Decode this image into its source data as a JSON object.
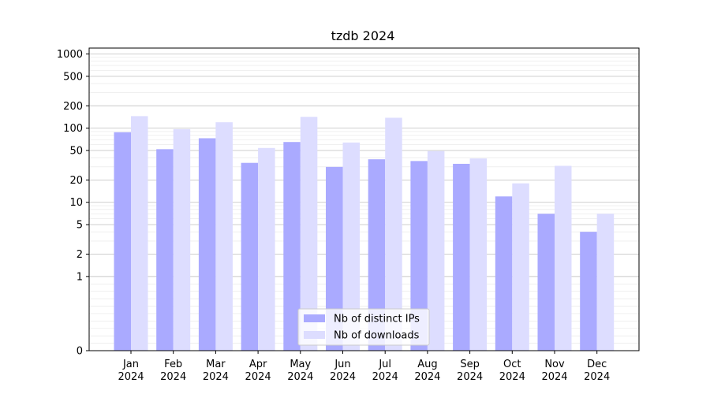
{
  "chart_data": {
    "type": "bar",
    "title": "tzdb 2024",
    "xlabel": "",
    "ylabel": "",
    "yscale": "symlog",
    "ylim": [
      0,
      1200
    ],
    "yticks": [
      0,
      1,
      2,
      5,
      10,
      20,
      50,
      100,
      200,
      500,
      1000
    ],
    "ytick_labels": [
      "0",
      "1",
      "2",
      "5",
      "10",
      "20",
      "50",
      "100",
      "200",
      "500",
      "1000"
    ],
    "categories": [
      [
        "Jan",
        "2024"
      ],
      [
        "Feb",
        "2024"
      ],
      [
        "Mar",
        "2024"
      ],
      [
        "Apr",
        "2024"
      ],
      [
        "May",
        "2024"
      ],
      [
        "Jun",
        "2024"
      ],
      [
        "Jul",
        "2024"
      ],
      [
        "Aug",
        "2024"
      ],
      [
        "Sep",
        "2024"
      ],
      [
        "Oct",
        "2024"
      ],
      [
        "Nov",
        "2024"
      ],
      [
        "Dec",
        "2024"
      ]
    ],
    "series": [
      {
        "name": "Nb of distinct IPs",
        "color": "#aaaaff",
        "values": [
          88,
          52,
          73,
          34,
          65,
          30,
          38,
          36,
          33,
          12,
          7,
          4
        ]
      },
      {
        "name": "Nb of downloads",
        "color": "#ddddff",
        "values": [
          145,
          97,
          120,
          54,
          142,
          64,
          138,
          49,
          39,
          18,
          31,
          7
        ]
      }
    ],
    "legend_position": "lower-center",
    "grid": true
  }
}
